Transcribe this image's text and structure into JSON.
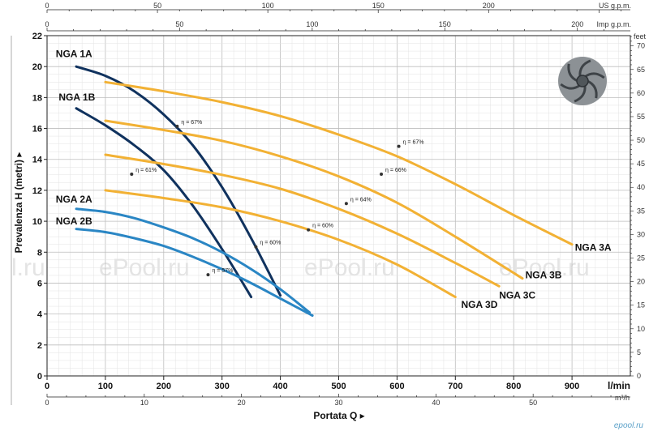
{
  "chart_data": {
    "type": "line",
    "xlabel": "Portata Q",
    "ylabel": "Prevalenza H (metri)",
    "x_unit": "l/min",
    "x_unit_m3h": "m³/h",
    "x_unit_usgpm": "US g.p.m.",
    "x_unit_impgpm": "Imp g.p.m.",
    "y_unit_right": "feet",
    "xlim": [
      0,
      1000
    ],
    "ylim": [
      0,
      22
    ],
    "x_ticks": [
      0,
      100,
      200,
      300,
      400,
      500,
      600,
      700,
      800,
      900
    ],
    "y_ticks": [
      0,
      2,
      4,
      6,
      8,
      10,
      12,
      14,
      16,
      18,
      20,
      22
    ],
    "x_ticks_m3h": [
      0,
      10,
      20,
      30,
      40,
      50
    ],
    "x_ticks_usgpm": [
      0,
      50,
      100,
      150,
      200
    ],
    "x_ticks_impgpm": [
      0,
      50,
      100,
      150,
      200
    ],
    "y_ticks_feet": [
      0,
      5,
      10,
      15,
      20,
      25,
      30,
      35,
      40,
      45,
      50,
      55,
      60,
      65,
      70
    ],
    "grid": true,
    "series": [
      {
        "name": "NGA 1A",
        "color": "#10325e",
        "x": [
          50,
          100,
          150,
          200,
          250,
          300,
          350,
          400
        ],
        "y": [
          20,
          19.4,
          18.4,
          16.9,
          14.9,
          12.2,
          8.9,
          5.2
        ]
      },
      {
        "name": "NGA 1B",
        "color": "#10325e",
        "x": [
          50,
          100,
          150,
          200,
          250,
          300,
          350
        ],
        "y": [
          17.3,
          16.2,
          14.9,
          13.3,
          11.0,
          8.2,
          5.1
        ]
      },
      {
        "name": "NGA 2A",
        "color": "#2a86c4",
        "x": [
          50,
          100,
          150,
          200,
          250,
          300,
          350,
          400,
          450
        ],
        "y": [
          10.8,
          10.6,
          10.2,
          9.6,
          8.9,
          8.0,
          6.9,
          5.6,
          4.1
        ]
      },
      {
        "name": "NGA 2B",
        "color": "#2a86c4",
        "x": [
          50,
          100,
          150,
          200,
          250,
          300,
          350,
          400,
          455
        ],
        "y": [
          9.5,
          9.3,
          8.9,
          8.4,
          7.7,
          6.9,
          6.0,
          5.0,
          3.9
        ]
      },
      {
        "name": "NGA 3A",
        "color": "#f2b134",
        "x": [
          100,
          200,
          300,
          400,
          500,
          600,
          700,
          800,
          900
        ],
        "y": [
          19.0,
          18.4,
          17.7,
          16.8,
          15.6,
          14.2,
          12.4,
          10.4,
          8.5
        ]
      },
      {
        "name": "NGA 3B",
        "color": "#f2b134",
        "x": [
          100,
          200,
          300,
          400,
          500,
          600,
          700,
          815
        ],
        "y": [
          16.5,
          15.9,
          15.2,
          14.2,
          12.9,
          11.2,
          9.0,
          6.3
        ]
      },
      {
        "name": "NGA 3C",
        "color": "#f2b134",
        "x": [
          100,
          200,
          300,
          400,
          500,
          600,
          700,
          775
        ],
        "y": [
          14.3,
          13.7,
          13.0,
          12.1,
          10.8,
          9.2,
          7.3,
          5.8
        ]
      },
      {
        "name": "NGA 3D",
        "color": "#f2b134",
        "x": [
          100,
          200,
          300,
          400,
          500,
          600,
          700
        ],
        "y": [
          12.0,
          11.5,
          10.9,
          10.0,
          8.8,
          7.2,
          5.1
        ]
      }
    ],
    "curve_labels": [
      {
        "text": "NGA 1A",
        "x": 15,
        "y": 20.6
      },
      {
        "text": "NGA 1B",
        "x": 20,
        "y": 17.8
      },
      {
        "text": "NGA 2A",
        "x": 15,
        "y": 11.2
      },
      {
        "text": "NGA 2B",
        "x": 15,
        "y": 9.8
      },
      {
        "text": "NGA 3A",
        "x": 905,
        "y": 8.1
      },
      {
        "text": "NGA 3B",
        "x": 820,
        "y": 6.3
      },
      {
        "text": "NGA 3C",
        "x": 775,
        "y": 5.0
      },
      {
        "text": "NGA 3D",
        "x": 710,
        "y": 4.4
      }
    ],
    "annotations": [
      {
        "text": "η = 67%",
        "x": 230,
        "y": 16.3
      },
      {
        "text": "η = 61%",
        "x": 152,
        "y": 13.2
      },
      {
        "text": "η = 60%",
        "x": 365,
        "y": 8.5
      },
      {
        "text": "η = 57%",
        "x": 283,
        "y": 6.7
      },
      {
        "text": "η = 67%",
        "x": 610,
        "y": 15.0
      },
      {
        "text": "η = 66%",
        "x": 580,
        "y": 13.2
      },
      {
        "text": "η = 64%",
        "x": 520,
        "y": 11.3
      },
      {
        "text": "η = 60%",
        "x": 455,
        "y": 9.6
      }
    ],
    "watermarks": [
      "l.ru",
      "ePool.ru",
      "ePool.ru",
      "ePool.ru"
    ],
    "footer_mark": "epool.ru"
  }
}
